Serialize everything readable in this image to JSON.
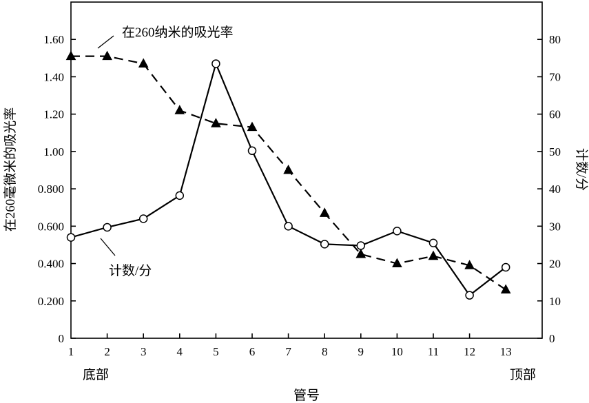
{
  "chart_data": {
    "type": "line",
    "xlabel": "管号",
    "ylabel_left": "在260毫微米的吸光率",
    "ylabel_right": "计数/分",
    "x_categories": [
      "1",
      "2",
      "3",
      "4",
      "5",
      "6",
      "7",
      "8",
      "9",
      "10",
      "11",
      "12",
      "13"
    ],
    "x_end_labels": {
      "left": "底部",
      "right": "顶部"
    },
    "ylim_left": [
      0,
      1.8
    ],
    "ylim_right": [
      0,
      90
    ],
    "left_ticks": [
      "0",
      "0.200",
      "0.400",
      "0.600",
      "0.800",
      "1.00",
      "1.20",
      "1.40",
      "1.60"
    ],
    "left_tick_values": [
      0,
      0.2,
      0.4,
      0.6,
      0.8,
      1.0,
      1.2,
      1.4,
      1.6
    ],
    "right_ticks": [
      "0",
      "10",
      "20",
      "30",
      "40",
      "50",
      "60",
      "70",
      "80"
    ],
    "right_tick_values": [
      0,
      10,
      20,
      30,
      40,
      50,
      60,
      70,
      80
    ],
    "series": [
      {
        "name": "在260纳米的吸光率",
        "axis": "left",
        "style": "dashed",
        "marker": "filled-triangle",
        "values": [
          1.51,
          1.51,
          1.47,
          1.22,
          1.15,
          1.13,
          0.9,
          0.67,
          0.45,
          0.4,
          0.44,
          0.39,
          0.26
        ]
      },
      {
        "name": "计数/分",
        "axis": "right",
        "style": "solid",
        "marker": "open-circle",
        "values": [
          27,
          29.7,
          32,
          38.2,
          73.5,
          50.2,
          30,
          25.2,
          24.8,
          28.7,
          25.5,
          11.5,
          19
        ]
      }
    ],
    "annotations": [
      {
        "text": "在260纳米的吸光率",
        "target_series": 0
      },
      {
        "text": "计数/分",
        "target_series": 1
      }
    ]
  }
}
